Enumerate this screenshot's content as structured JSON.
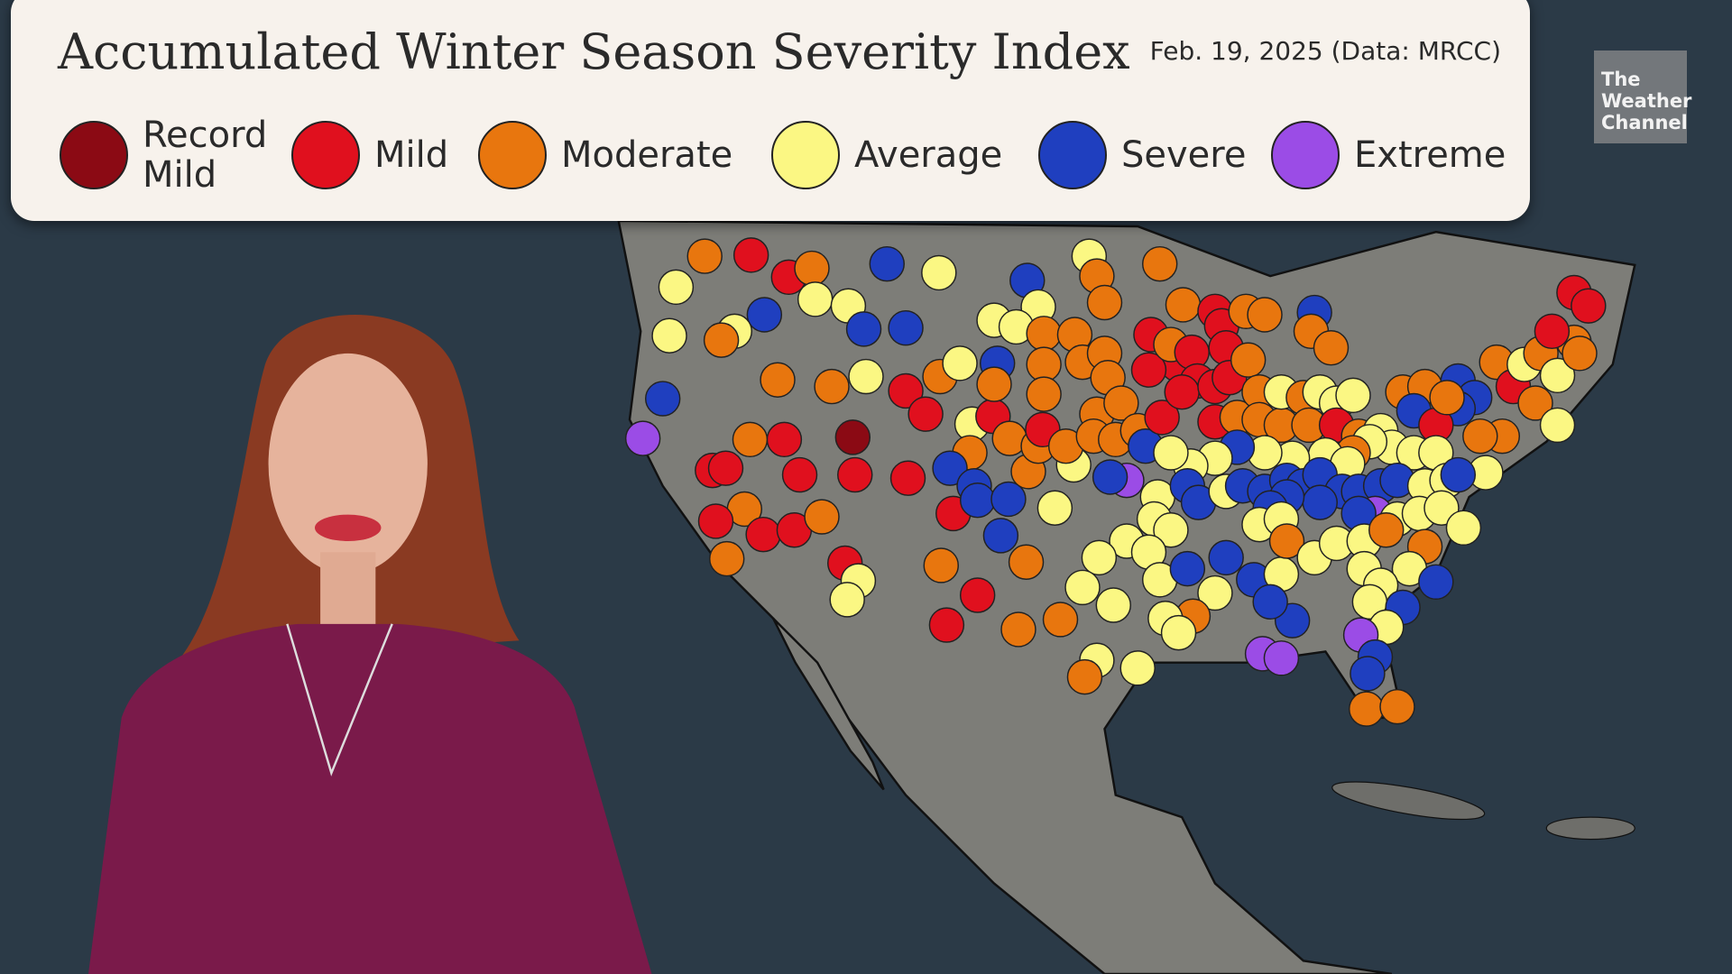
{
  "header": {
    "title": "Accumulated Winter Season Severity Index",
    "date": "Feb. 19, 2025 (Data: MRCC)"
  },
  "legend": [
    {
      "label": "Record Mild",
      "color": "#8b0a14"
    },
    {
      "label": "Mild",
      "color": "#e0101e"
    },
    {
      "label": "Moderate",
      "color": "#e8760e"
    },
    {
      "label": "Average",
      "color": "#fbf783"
    },
    {
      "label": "Severe",
      "color": "#1f3fbf"
    },
    {
      "label": "Extreme",
      "color": "#9b4ce6"
    }
  ],
  "logo": "The Weather Channel"
}
